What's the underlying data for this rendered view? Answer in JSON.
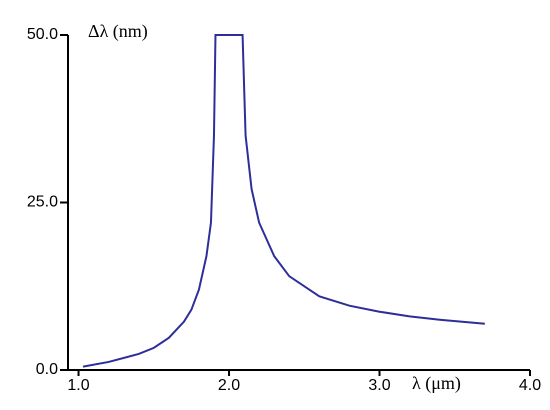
{
  "chart_data": {
    "type": "line",
    "y_label": "Δλ (nm)",
    "x_label": "λ (μm)",
    "x": [
      1.03,
      1.2,
      1.4,
      1.5,
      1.6,
      1.7,
      1.75,
      1.8,
      1.85,
      1.88,
      1.9,
      1.91,
      2.09,
      2.11,
      2.15,
      2.2,
      2.3,
      2.4,
      2.6,
      2.8,
      3.0,
      3.2,
      3.4,
      3.7
    ],
    "series": [
      {
        "color": "#2e2e9a",
        "values": [
          0.5,
          1.2,
          2.4,
          3.3,
          4.8,
          7.2,
          9,
          12,
          17,
          22,
          35,
          50,
          50,
          35,
          27,
          22,
          17,
          14,
          11,
          9.6,
          8.7,
          8,
          7.5,
          6.9
        ]
      }
    ],
    "xlim": [
      0.93,
      4.0
    ],
    "ylim": [
      0,
      50
    ],
    "xticks": [
      {
        "value": 1,
        "label": "1.0"
      },
      {
        "value": 2,
        "label": "2.0"
      },
      {
        "value": 3,
        "label": "3.0"
      },
      {
        "value": 4,
        "label": "4.0"
      }
    ],
    "yticks": [
      {
        "value": 0,
        "label": "0.0"
      },
      {
        "value": 25,
        "label": "25.0"
      },
      {
        "value": 50,
        "label": "50.0"
      }
    ]
  }
}
